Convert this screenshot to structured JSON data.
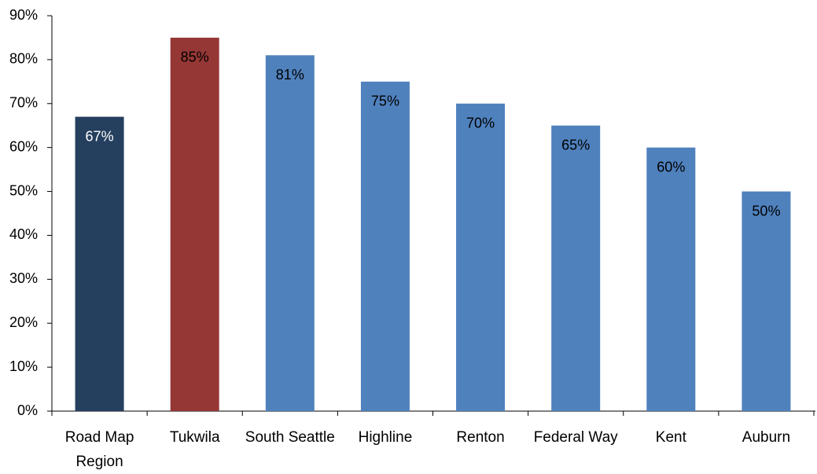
{
  "chart_data": {
    "type": "bar",
    "categories": [
      "Road Map Region",
      "Tukwila",
      "South Seattle",
      "Highline",
      "Renton",
      "Federal Way",
      "Kent",
      "Auburn"
    ],
    "values": [
      67,
      85,
      81,
      75,
      70,
      65,
      60,
      50
    ],
    "value_labels": [
      "67%",
      "85%",
      "81%",
      "75%",
      "70%",
      "65%",
      "60%",
      "50%"
    ],
    "colors": [
      "#253f5e",
      "#953735",
      "#4f81bd",
      "#4f81bd",
      "#4f81bd",
      "#4f81bd",
      "#4f81bd",
      "#4f81bd"
    ],
    "value_label_colors": [
      "#ffffff",
      "#000000",
      "#000000",
      "#000000",
      "#000000",
      "#000000",
      "#000000",
      "#000000"
    ],
    "ylim": [
      0,
      90
    ],
    "yticks": [
      {
        "value": 0,
        "label": "0%"
      },
      {
        "value": 10,
        "label": "10%"
      },
      {
        "value": 20,
        "label": "20%"
      },
      {
        "value": 30,
        "label": "30%"
      },
      {
        "value": 40,
        "label": "40%"
      },
      {
        "value": 50,
        "label": "50%"
      },
      {
        "value": 60,
        "label": "60%"
      },
      {
        "value": 70,
        "label": "70%"
      },
      {
        "value": 80,
        "label": "80%"
      },
      {
        "value": 90,
        "label": "90%"
      }
    ],
    "grid": false
  }
}
